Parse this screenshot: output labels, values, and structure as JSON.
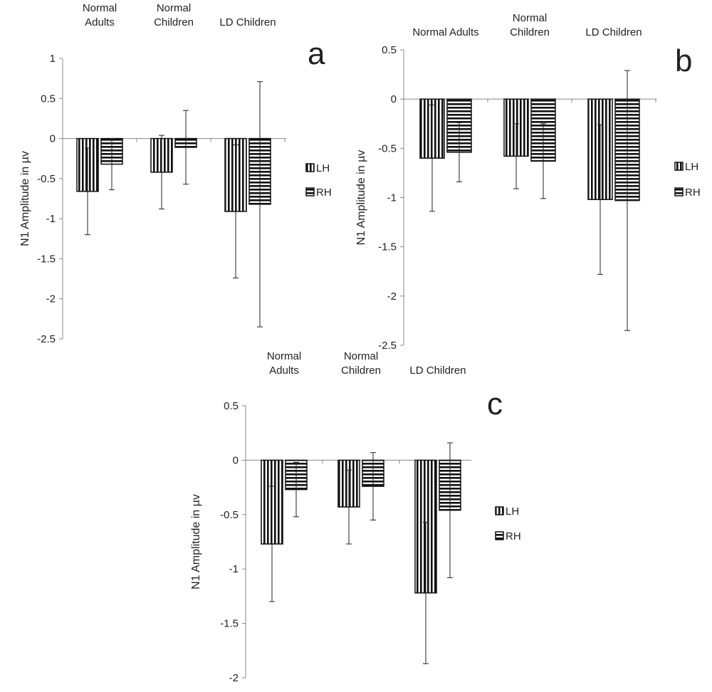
{
  "chart_data": [
    {
      "panel": "a",
      "type": "bar",
      "ylabel": "N1 Amplitude in µv",
      "ylim": [
        -2.5,
        1
      ],
      "yticks": [
        "1",
        "0.5",
        "0",
        "-0.5",
        "-1",
        "-1.5",
        "-2",
        "-2.5"
      ],
      "categories": [
        [
          "Normal",
          "Adults"
        ],
        [
          "Normal",
          "Children"
        ],
        [
          "LD Children"
        ]
      ],
      "series": [
        {
          "name": "LH",
          "pattern": "vertical-stripes",
          "values": [
            -0.66,
            -0.42,
            -0.91
          ],
          "error": [
            0.54,
            0.46,
            0.83
          ]
        },
        {
          "name": "RH",
          "pattern": "horizontal-stripes",
          "values": [
            -0.32,
            -0.11,
            -0.82
          ],
          "error": [
            0.32,
            0.46,
            1.53
          ]
        }
      ],
      "legend": "right",
      "grid": false
    },
    {
      "panel": "b",
      "type": "bar",
      "ylabel": "N1 Amplitude in µv",
      "ylim": [
        -2.5,
        0.5
      ],
      "yticks": [
        "0.5",
        "0",
        "-0.5",
        "-1",
        "-1.5",
        "-2",
        "-2.5"
      ],
      "categories": [
        [
          "Normal Adults"
        ],
        [
          "Normal",
          "Children"
        ],
        [
          "LD Children"
        ]
      ],
      "series": [
        {
          "name": "LH",
          "pattern": "vertical-stripes",
          "values": [
            -0.6,
            -0.58,
            -1.02
          ],
          "error": [
            0.54,
            0.33,
            0.76
          ]
        },
        {
          "name": "RH",
          "pattern": "horizontal-stripes",
          "values": [
            -0.54,
            -0.63,
            -1.03
          ],
          "error": [
            0.3,
            0.38,
            1.32
          ]
        }
      ],
      "legend": "right",
      "grid": false
    },
    {
      "panel": "c",
      "type": "bar",
      "ylabel": "N1 Amplitude in µv",
      "ylim": [
        -2,
        0.5
      ],
      "yticks": [
        "0.5",
        "0",
        "-0.5",
        "-1",
        "-1.5",
        "-2"
      ],
      "categories": [
        [
          "Normal",
          "Adults"
        ],
        [
          "Normal",
          "Children"
        ],
        [
          "LD Children"
        ]
      ],
      "series": [
        {
          "name": "LH",
          "pattern": "vertical-stripes",
          "values": [
            -0.77,
            -0.43,
            -1.22
          ],
          "error": [
            0.53,
            0.34,
            0.65
          ]
        },
        {
          "name": "RH",
          "pattern": "horizontal-stripes",
          "values": [
            -0.27,
            -0.24,
            -0.46
          ],
          "error": [
            0.25,
            0.31,
            0.62
          ]
        }
      ],
      "legend": "right",
      "grid": false
    }
  ]
}
